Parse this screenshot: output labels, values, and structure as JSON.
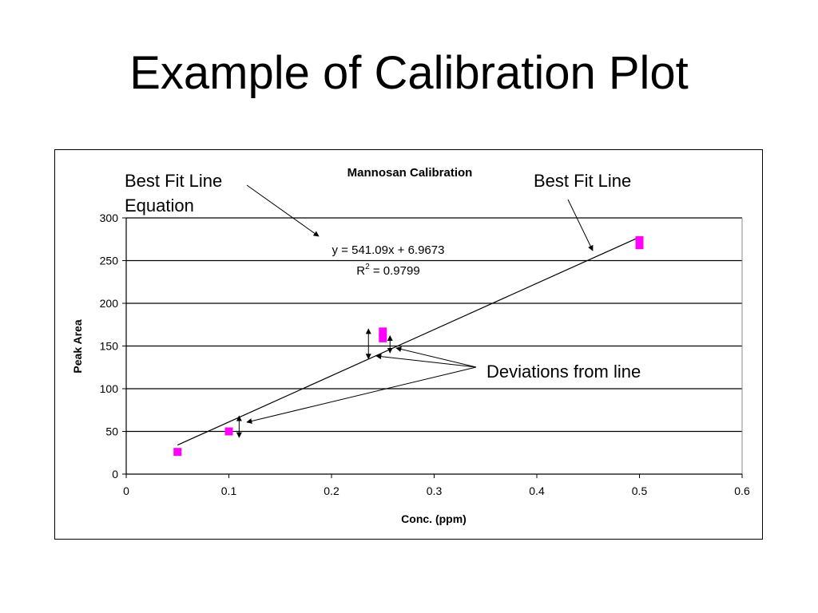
{
  "slide": {
    "title": "Example of Calibration Plot"
  },
  "chart_data": {
    "type": "scatter",
    "title": "Mannosan Calibration",
    "xlabel": "Conc. (ppm)",
    "ylabel": "Peak Area",
    "xlim": [
      0,
      0.6
    ],
    "ylim": [
      0,
      300
    ],
    "x_ticks": [
      "0",
      "0.1",
      "0.2",
      "0.3",
      "0.4",
      "0.5",
      "0.6"
    ],
    "y_ticks": [
      "0",
      "50",
      "100",
      "150",
      "200",
      "250",
      "300"
    ],
    "grid": "horizontal",
    "marker_color": "#ff00ff",
    "points": [
      {
        "x": 0.05,
        "y": 26
      },
      {
        "x": 0.1,
        "y": 50
      },
      {
        "x": 0.25,
        "y": 167
      },
      {
        "x": 0.25,
        "y": 159
      },
      {
        "x": 0.5,
        "y": 274
      },
      {
        "x": 0.5,
        "y": 268
      }
    ],
    "trendline": {
      "x_start": 0.05,
      "x_end": 0.5,
      "slope": 541.09,
      "intercept": 6.9673
    },
    "equation": "y = 541.09x + 6.9673",
    "r_squared": {
      "prefix": "R",
      "superscript": "2",
      "value": " = 0.9799"
    },
    "annotations": {
      "equation_label_line1": "Best Fit Line",
      "equation_label_line2": "Equation",
      "fit_line_label": "Best Fit Line",
      "deviations_label": "Deviations from line"
    }
  }
}
